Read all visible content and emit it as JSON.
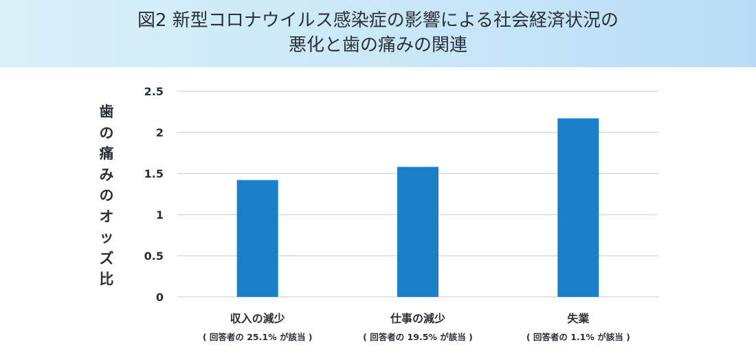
{
  "header": {
    "title_line1": "図2 新型コロナウイルス感染症の影響による社会経済状況の",
    "title_line2": "悪化と歯の痛みの関連"
  },
  "chart_data": {
    "type": "bar",
    "ylabel_chars": [
      "歯",
      "の",
      "痛",
      "み",
      "の",
      "オ",
      "ッ",
      "ズ",
      "比"
    ],
    "xlabel": "",
    "ylim": [
      0,
      2.5
    ],
    "yticks": [
      0,
      0.5,
      1,
      1.5,
      2,
      2.5
    ],
    "ytick_labels": [
      "0",
      "0.5",
      "1",
      "1.5",
      "2",
      "2.5"
    ],
    "grid": true,
    "legend": "none",
    "bar_color": "#1a7fc8",
    "categories": [
      "収入の減少",
      "仕事の減少",
      "失業"
    ],
    "category_notes": [
      "( 回答者の 25.1% が該当 )",
      "( 回答者の 19.5% が該当 )",
      "( 回答者の 1.1% が該当 )"
    ],
    "values": [
      1.42,
      1.58,
      2.17
    ]
  }
}
